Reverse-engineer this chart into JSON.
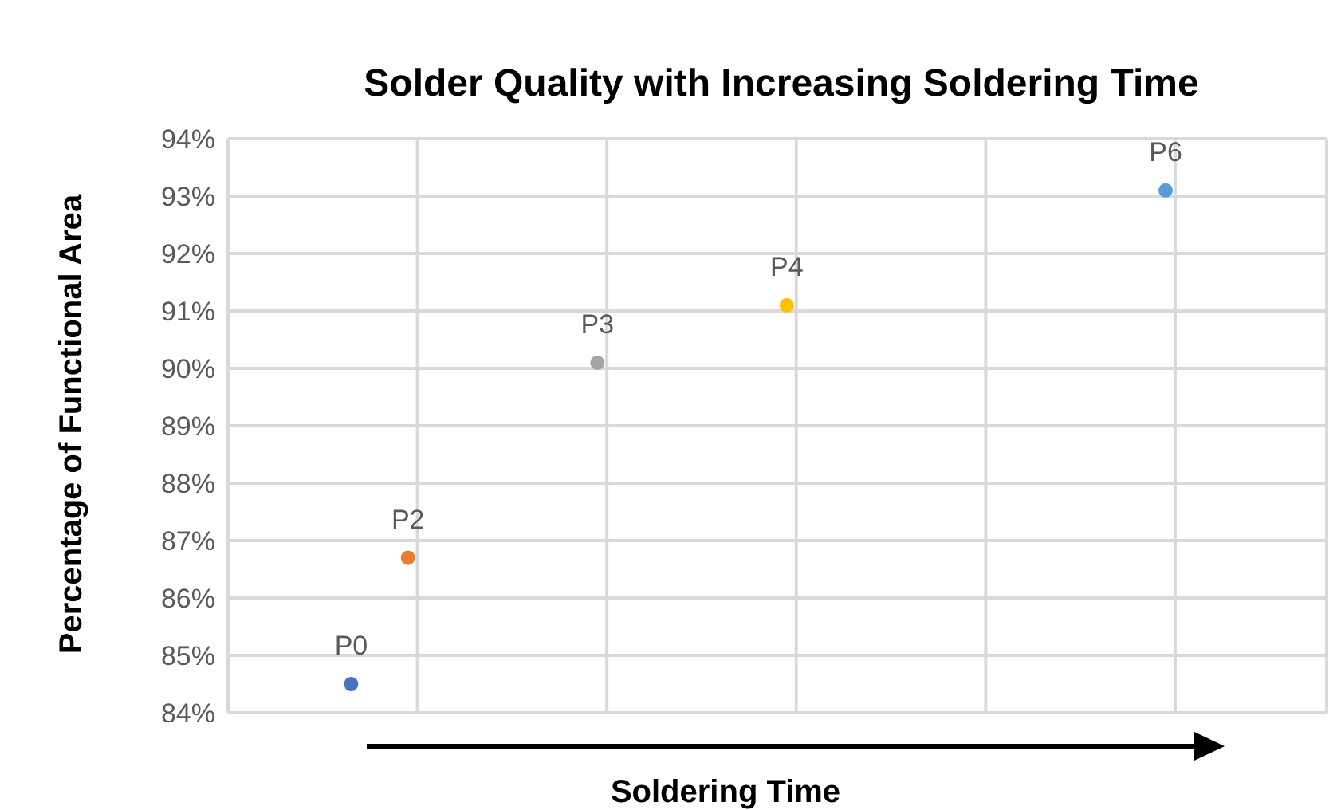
{
  "chart_data": {
    "type": "scatter",
    "title": "Solder Quality with Increasing Soldering Time",
    "xlabel": "Soldering Time",
    "ylabel": "Percentage of Functional Area",
    "categories": [
      null,
      null,
      null,
      null,
      null,
      null,
      null,
      null,
      null,
      null,
      null,
      null,
      null,
      null,
      null,
      null,
      null,
      null,
      null,
      null,
      null,
      null,
      null,
      null,
      null,
      null,
      null,
      null,
      null,
      null,
      null,
      null,
      null,
      null,
      null,
      null,
      null,
      null,
      null,
      null,
      null,
      null,
      null,
      null,
      null,
      null,
      null,
      null,
      null,
      null,
      null,
      null,
      null,
      null,
      null,
      null,
      null,
      null
    ],
    "series": [
      {
        "name": "P0",
        "color": "#4472c4",
        "values": [
          null,
          null,
          null,
          null,
          null,
          null,
          84.5,
          null,
          null,
          null,
          null,
          null,
          null,
          null,
          null,
          null,
          null,
          null,
          null,
          null,
          null,
          null,
          null,
          null,
          null,
          null,
          null,
          null,
          null,
          null,
          null,
          null,
          null,
          null,
          null,
          null,
          null,
          null,
          null,
          null,
          null,
          null,
          null,
          null,
          null,
          null,
          null,
          null,
          null,
          null,
          null,
          null,
          null,
          null,
          null,
          null,
          null,
          null
        ]
      },
      {
        "name": "P2",
        "color": "#ed7d31",
        "values": [
          null,
          null,
          null,
          null,
          null,
          null,
          null,
          null,
          null,
          86.7,
          null,
          null,
          null,
          null,
          null,
          null,
          null,
          null,
          null,
          null,
          null,
          null,
          null,
          null,
          null,
          null,
          null,
          null,
          null,
          null,
          null,
          null,
          null,
          null,
          null,
          null,
          null,
          null,
          null,
          null,
          null,
          null,
          null,
          null,
          null,
          null,
          null,
          null,
          null,
          null,
          null,
          null,
          null,
          null,
          null,
          null,
          null,
          null
        ]
      },
      {
        "name": "P3",
        "color": "#a5a5a5",
        "values": [
          null,
          null,
          null,
          null,
          null,
          null,
          null,
          null,
          null,
          null,
          null,
          null,
          null,
          null,
          null,
          null,
          null,
          null,
          null,
          90.1,
          null,
          null,
          null,
          null,
          null,
          null,
          null,
          null,
          null,
          null,
          null,
          null,
          null,
          null,
          null,
          null,
          null,
          null,
          null,
          null,
          null,
          null,
          null,
          null,
          null,
          null,
          null,
          null,
          null,
          null,
          null,
          null,
          null,
          null,
          null,
          null,
          null,
          null
        ]
      },
      {
        "name": "P4",
        "color": "#ffc000",
        "values": [
          null,
          null,
          null,
          null,
          null,
          null,
          null,
          null,
          null,
          null,
          null,
          null,
          null,
          null,
          null,
          null,
          null,
          null,
          null,
          null,
          null,
          null,
          null,
          null,
          null,
          null,
          null,
          null,
          null,
          91.1,
          null,
          null,
          null,
          null,
          null,
          null,
          null,
          null,
          null,
          null,
          null,
          null,
          null,
          null,
          null,
          null,
          null,
          null,
          null,
          null,
          null,
          null,
          null,
          null,
          null,
          null,
          null,
          null
        ]
      },
      {
        "name": "P6",
        "color": "#5b9bd5",
        "values": [
          null,
          null,
          null,
          null,
          null,
          null,
          null,
          null,
          null,
          null,
          null,
          null,
          null,
          null,
          null,
          null,
          null,
          null,
          null,
          null,
          null,
          null,
          null,
          null,
          null,
          null,
          null,
          null,
          null,
          null,
          null,
          null,
          null,
          null,
          null,
          null,
          null,
          null,
          null,
          null,
          null,
          null,
          null,
          null,
          null,
          null,
          null,
          null,
          null,
          93.1,
          null,
          null,
          null,
          null,
          null,
          null,
          null,
          null
        ]
      }
    ],
    "ylim": [
      84,
      94
    ],
    "yticks": [
      {
        "value": 84,
        "label": "84%"
      },
      {
        "value": 85,
        "label": "85%"
      },
      {
        "value": 86,
        "label": "86%"
      },
      {
        "value": 87,
        "label": "87%"
      },
      {
        "value": 88,
        "label": "88%"
      },
      {
        "value": 89,
        "label": "89%"
      },
      {
        "value": 90,
        "label": "90%"
      },
      {
        "value": 91,
        "label": "91%"
      },
      {
        "value": 92,
        "label": "92%"
      },
      {
        "value": 93,
        "label": "93%"
      },
      {
        "value": 94,
        "label": "94%"
      }
    ],
    "grid": true,
    "legend": false,
    "marker": "circle"
  }
}
